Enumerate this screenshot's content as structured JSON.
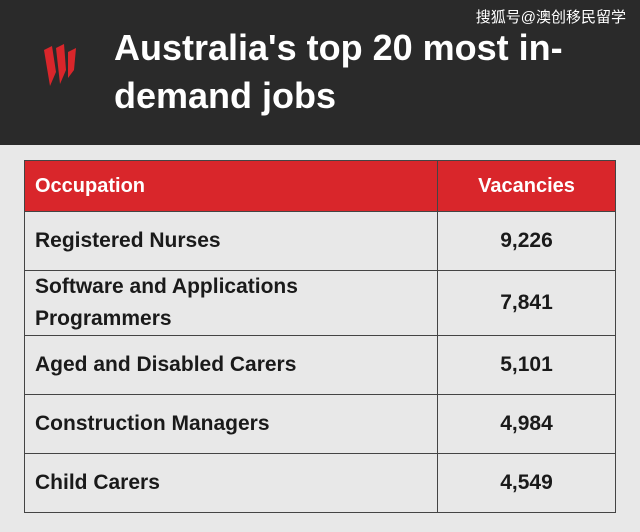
{
  "watermark": "搜狐号@澳创移民留学",
  "header": {
    "title": "Australia's top 20 most in-demand jobs"
  },
  "table": {
    "columns": [
      "Occupation",
      "Vacancies"
    ],
    "rows": [
      [
        "Registered Nurses",
        "9,226"
      ],
      [
        "Software and Applications Programmers",
        "7,841"
      ],
      [
        "Aged and Disabled Carers",
        "5,101"
      ],
      [
        "Construction Managers",
        "4,984"
      ],
      [
        "Child Carers",
        "4,549"
      ]
    ]
  }
}
